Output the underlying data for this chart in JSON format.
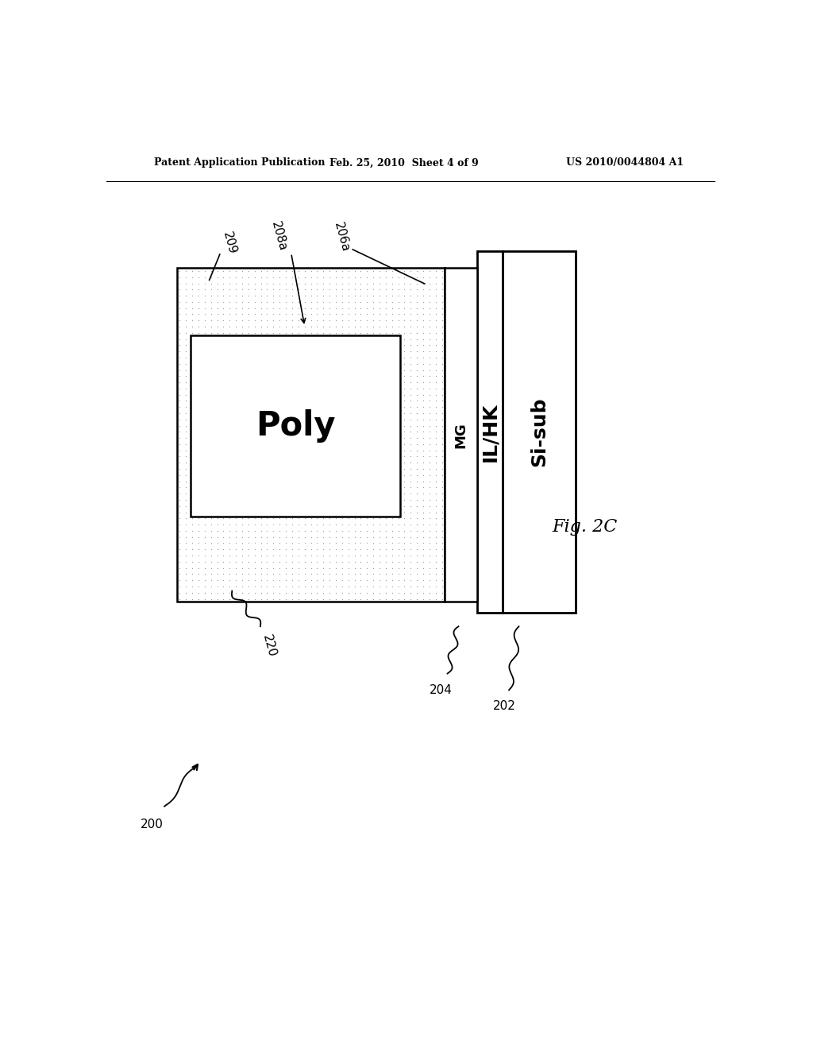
{
  "header_left": "Patent Application Publication",
  "header_center": "Feb. 25, 2010  Sheet 4 of 9",
  "header_right": "US 2010/0044804 A1",
  "fig_label": "Fig. 2C",
  "label_200": "200",
  "label_202": "202",
  "label_204": "204",
  "label_206a": "206a",
  "label_208a": "208a",
  "label_209": "209",
  "label_220": "220",
  "poly_text": "Poly",
  "mg_text": "MG",
  "ilhk_text": "IL/HK",
  "sisub_text": "Si-sub",
  "dot_color": "#999999",
  "bg_color": "#ffffff",
  "line_color": "#000000"
}
